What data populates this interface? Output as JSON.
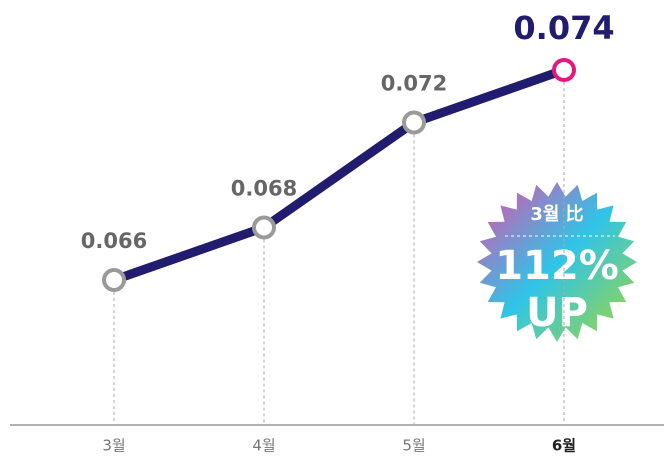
{
  "chart_data": {
    "type": "line",
    "categories": [
      "3월",
      "4월",
      "5월",
      "6월"
    ],
    "values": [
      0.066,
      0.068,
      0.072,
      0.074
    ],
    "color": "#221c6e",
    "marker_color": "#9a9a9a",
    "highlight_color": "#e6177f",
    "annotations": [
      "3월 比",
      "112%",
      "UP"
    ]
  }
}
